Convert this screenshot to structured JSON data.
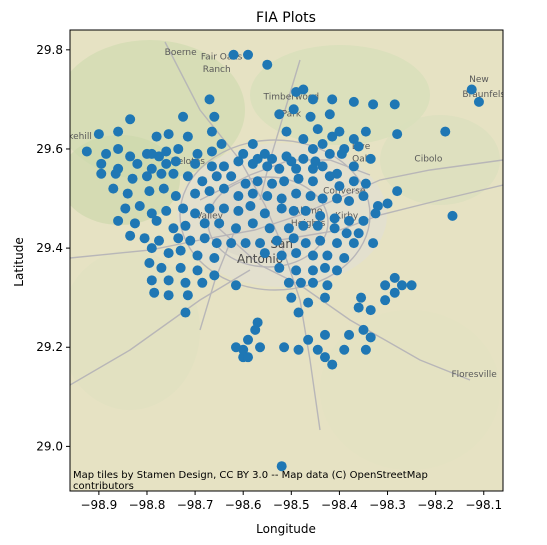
{
  "chart_data": {
    "type": "scatter",
    "title": "FIA Plots",
    "xlabel": "Longitude",
    "ylabel": "Latitude",
    "xlim": [
      -98.96,
      -98.06
    ],
    "ylim": [
      28.91,
      29.84
    ],
    "xticks": [
      -98.9,
      -98.8,
      -98.7,
      -98.6,
      -98.5,
      -98.4,
      -98.3,
      -98.2,
      -98.1
    ],
    "xtick_labels": [
      "−98.9",
      "−98.8",
      "−98.7",
      "−98.6",
      "−98.5",
      "−98.4",
      "−98.3",
      "−98.2",
      "−98.1"
    ],
    "yticks": [
      29.0,
      29.2,
      29.4,
      29.6,
      29.8
    ],
    "ytick_labels": [
      "29.0",
      "29.2",
      "29.4",
      "29.6",
      "29.8"
    ],
    "grid": false,
    "marker_color": "#1f77b4",
    "attribution": [
      "Map tiles by Stamen Design, CC BY 3.0 -- Map data (C) OpenStreetMap",
      "contributors"
    ],
    "basemap_labels": [
      {
        "text": "Boerne",
        "lon": -98.73,
        "lat": 29.79,
        "size": "small"
      },
      {
        "text": "Fair Oaks",
        "lon": -98.645,
        "lat": 29.78,
        "size": "small"
      },
      {
        "text": "Ranch",
        "lon": -98.655,
        "lat": 29.755,
        "size": "small"
      },
      {
        "text": "Timberwood",
        "lon": -98.5,
        "lat": 29.7,
        "size": "small"
      },
      {
        "text": "Park",
        "lon": -98.5,
        "lat": 29.665,
        "size": "small"
      },
      {
        "text": "Live",
        "lon": -98.355,
        "lat": 29.6,
        "size": "small"
      },
      {
        "text": "Oak",
        "lon": -98.355,
        "lat": 29.575,
        "size": "small"
      },
      {
        "text": "Cibolo",
        "lon": -98.215,
        "lat": 29.575,
        "size": "small"
      },
      {
        "text": "New",
        "lon": -98.11,
        "lat": 29.735,
        "size": "small"
      },
      {
        "text": "Braunfels",
        "lon": -98.1,
        "lat": 29.705,
        "size": "small"
      },
      {
        "text": "Lakehill",
        "lon": -98.95,
        "lat": 29.62,
        "size": "small"
      },
      {
        "text": "Helotes",
        "lon": -98.715,
        "lat": 29.57,
        "size": "small"
      },
      {
        "text": "Valley",
        "lon": -98.67,
        "lat": 29.46,
        "size": "small"
      },
      {
        "text": "Converse",
        "lon": -98.39,
        "lat": 29.51,
        "size": "small"
      },
      {
        "text": "Kirby",
        "lon": -98.385,
        "lat": 29.46,
        "size": "small"
      },
      {
        "text": "Alamo",
        "lon": -98.465,
        "lat": 29.47,
        "size": "small"
      },
      {
        "text": "Heights",
        "lon": -98.465,
        "lat": 29.445,
        "size": "small"
      },
      {
        "text": "San",
        "lon": -98.52,
        "lat": 29.4,
        "size": "big"
      },
      {
        "text": "Antonio",
        "lon": -98.565,
        "lat": 29.37,
        "size": "big"
      },
      {
        "text": "Floresville",
        "lon": -98.12,
        "lat": 29.14,
        "size": "small"
      }
    ],
    "points": [
      [
        -98.62,
        29.79
      ],
      [
        -98.59,
        29.79
      ],
      [
        -98.55,
        29.77
      ],
      [
        -98.49,
        29.715
      ],
      [
        -98.475,
        29.72
      ],
      [
        -98.455,
        29.7
      ],
      [
        -98.415,
        29.7
      ],
      [
        -98.37,
        29.695
      ],
      [
        -98.33,
        29.69
      ],
      [
        -98.285,
        29.69
      ],
      [
        -98.11,
        29.695
      ],
      [
        -98.125,
        29.72
      ],
      [
        -98.67,
        29.7
      ],
      [
        -98.725,
        29.665
      ],
      [
        -98.66,
        29.665
      ],
      [
        -98.525,
        29.67
      ],
      [
        -98.495,
        29.68
      ],
      [
        -98.46,
        29.665
      ],
      [
        -98.445,
        29.64
      ],
      [
        -98.42,
        29.67
      ],
      [
        -98.4,
        29.635
      ],
      [
        -98.37,
        29.62
      ],
      [
        -98.345,
        29.635
      ],
      [
        -98.28,
        29.63
      ],
      [
        -98.18,
        29.635
      ],
      [
        -98.835,
        29.66
      ],
      [
        -98.86,
        29.635
      ],
      [
        -98.9,
        29.63
      ],
      [
        -98.78,
        29.625
      ],
      [
        -98.755,
        29.63
      ],
      [
        -98.715,
        29.625
      ],
      [
        -98.665,
        29.635
      ],
      [
        -98.58,
        29.61
      ],
      [
        -98.555,
        29.59
      ],
      [
        -98.51,
        29.635
      ],
      [
        -98.475,
        29.62
      ],
      [
        -98.455,
        29.6
      ],
      [
        -98.435,
        29.61
      ],
      [
        -98.415,
        29.625
      ],
      [
        -98.39,
        29.6
      ],
      [
        -98.36,
        29.605
      ],
      [
        -98.925,
        29.595
      ],
      [
        -98.885,
        29.59
      ],
      [
        -98.86,
        29.6
      ],
      [
        -98.835,
        29.585
      ],
      [
        -98.8,
        29.59
      ],
      [
        -98.79,
        29.59
      ],
      [
        -98.775,
        29.585
      ],
      [
        -98.76,
        29.595
      ],
      [
        -98.735,
        29.6
      ],
      [
        -98.695,
        29.59
      ],
      [
        -98.665,
        29.595
      ],
      [
        -98.645,
        29.61
      ],
      [
        -98.6,
        29.59
      ],
      [
        -98.57,
        29.58
      ],
      [
        -98.54,
        29.58
      ],
      [
        -98.51,
        29.585
      ],
      [
        -98.5,
        29.575
      ],
      [
        -98.475,
        29.58
      ],
      [
        -98.45,
        29.575
      ],
      [
        -98.42,
        29.59
      ],
      [
        -98.395,
        29.59
      ],
      [
        -98.895,
        29.57
      ],
      [
        -98.86,
        29.56
      ],
      [
        -98.82,
        29.57
      ],
      [
        -98.79,
        29.56
      ],
      [
        -98.76,
        29.57
      ],
      [
        -98.74,
        29.575
      ],
      [
        -98.7,
        29.57
      ],
      [
        -98.665,
        29.565
      ],
      [
        -98.64,
        29.565
      ],
      [
        -98.61,
        29.575
      ],
      [
        -98.58,
        29.57
      ],
      [
        -98.55,
        29.565
      ],
      [
        -98.525,
        29.56
      ],
      [
        -98.49,
        29.56
      ],
      [
        -98.455,
        29.56
      ],
      [
        -98.435,
        29.565
      ],
      [
        -98.405,
        29.55
      ],
      [
        -98.37,
        29.565
      ],
      [
        -98.335,
        29.58
      ],
      [
        -98.895,
        29.55
      ],
      [
        -98.865,
        29.55
      ],
      [
        -98.83,
        29.54
      ],
      [
        -98.8,
        29.545
      ],
      [
        -98.77,
        29.55
      ],
      [
        -98.745,
        29.55
      ],
      [
        -98.715,
        29.545
      ],
      [
        -98.685,
        29.535
      ],
      [
        -98.655,
        29.545
      ],
      [
        -98.625,
        29.545
      ],
      [
        -98.595,
        29.53
      ],
      [
        -98.57,
        29.535
      ],
      [
        -98.54,
        29.53
      ],
      [
        -98.515,
        29.535
      ],
      [
        -98.485,
        29.54
      ],
      [
        -98.455,
        29.535
      ],
      [
        -98.42,
        29.545
      ],
      [
        -98.4,
        29.525
      ],
      [
        -98.37,
        29.535
      ],
      [
        -98.345,
        29.53
      ],
      [
        -98.87,
        29.52
      ],
      [
        -98.84,
        29.51
      ],
      [
        -98.795,
        29.515
      ],
      [
        -98.765,
        29.52
      ],
      [
        -98.74,
        29.505
      ],
      [
        -98.7,
        29.51
      ],
      [
        -98.67,
        29.515
      ],
      [
        -98.64,
        29.52
      ],
      [
        -98.61,
        29.505
      ],
      [
        -98.58,
        29.51
      ],
      [
        -98.55,
        29.505
      ],
      [
        -98.52,
        29.5
      ],
      [
        -98.49,
        29.51
      ],
      [
        -98.46,
        29.505
      ],
      [
        -98.435,
        29.5
      ],
      [
        -98.405,
        29.5
      ],
      [
        -98.38,
        29.495
      ],
      [
        -98.35,
        29.505
      ],
      [
        -98.32,
        29.485
      ],
      [
        -98.3,
        29.49
      ],
      [
        -98.28,
        29.515
      ],
      [
        -98.845,
        29.48
      ],
      [
        -98.815,
        29.485
      ],
      [
        -98.79,
        29.47
      ],
      [
        -98.76,
        29.475
      ],
      [
        -98.725,
        29.48
      ],
      [
        -98.7,
        29.47
      ],
      [
        -98.67,
        29.48
      ],
      [
        -98.64,
        29.48
      ],
      [
        -98.61,
        29.475
      ],
      [
        -98.585,
        29.485
      ],
      [
        -98.555,
        29.47
      ],
      [
        -98.52,
        29.48
      ],
      [
        -98.495,
        29.475
      ],
      [
        -98.47,
        29.475
      ],
      [
        -98.44,
        29.465
      ],
      [
        -98.41,
        29.46
      ],
      [
        -98.38,
        29.455
      ],
      [
        -98.35,
        29.455
      ],
      [
        -98.325,
        29.47
      ],
      [
        -98.165,
        29.465
      ],
      [
        -98.86,
        29.455
      ],
      [
        -98.825,
        29.45
      ],
      [
        -98.78,
        29.455
      ],
      [
        -98.745,
        29.44
      ],
      [
        -98.72,
        29.445
      ],
      [
        -98.68,
        29.45
      ],
      [
        -98.65,
        29.45
      ],
      [
        -98.615,
        29.44
      ],
      [
        -98.58,
        29.45
      ],
      [
        -98.545,
        29.44
      ],
      [
        -98.505,
        29.44
      ],
      [
        -98.475,
        29.445
      ],
      [
        -98.445,
        29.445
      ],
      [
        -98.41,
        29.44
      ],
      [
        -98.385,
        29.43
      ],
      [
        -98.36,
        29.43
      ],
      [
        -98.835,
        29.425
      ],
      [
        -98.805,
        29.42
      ],
      [
        -98.775,
        29.415
      ],
      [
        -98.735,
        29.42
      ],
      [
        -98.71,
        29.415
      ],
      [
        -98.68,
        29.42
      ],
      [
        -98.655,
        29.41
      ],
      [
        -98.625,
        29.41
      ],
      [
        -98.595,
        29.41
      ],
      [
        -98.565,
        29.41
      ],
      [
        -98.53,
        29.415
      ],
      [
        -98.495,
        29.42
      ],
      [
        -98.47,
        29.41
      ],
      [
        -98.44,
        29.415
      ],
      [
        -98.405,
        29.41
      ],
      [
        -98.37,
        29.41
      ],
      [
        -98.33,
        29.41
      ],
      [
        -98.79,
        29.4
      ],
      [
        -98.755,
        29.39
      ],
      [
        -98.73,
        29.395
      ],
      [
        -98.695,
        29.385
      ],
      [
        -98.66,
        29.38
      ],
      [
        -98.555,
        29.39
      ],
      [
        -98.52,
        29.385
      ],
      [
        -98.49,
        29.39
      ],
      [
        -98.455,
        29.385
      ],
      [
        -98.425,
        29.385
      ],
      [
        -98.39,
        29.38
      ],
      [
        -98.795,
        29.37
      ],
      [
        -98.77,
        29.36
      ],
      [
        -98.73,
        29.36
      ],
      [
        -98.695,
        29.355
      ],
      [
        -98.66,
        29.345
      ],
      [
        -98.525,
        29.36
      ],
      [
        -98.49,
        29.355
      ],
      [
        -98.455,
        29.355
      ],
      [
        -98.43,
        29.36
      ],
      [
        -98.405,
        29.355
      ],
      [
        -98.79,
        29.335
      ],
      [
        -98.755,
        29.335
      ],
      [
        -98.72,
        29.33
      ],
      [
        -98.685,
        29.33
      ],
      [
        -98.615,
        29.325
      ],
      [
        -98.505,
        29.33
      ],
      [
        -98.48,
        29.33
      ],
      [
        -98.455,
        29.33
      ],
      [
        -98.425,
        29.325
      ],
      [
        -98.285,
        29.34
      ],
      [
        -98.285,
        29.31
      ],
      [
        -98.27,
        29.325
      ],
      [
        -98.25,
        29.325
      ],
      [
        -98.305,
        29.325
      ],
      [
        -98.785,
        29.31
      ],
      [
        -98.755,
        29.305
      ],
      [
        -98.715,
        29.305
      ],
      [
        -98.5,
        29.3
      ],
      [
        -98.465,
        29.29
      ],
      [
        -98.43,
        29.3
      ],
      [
        -98.355,
        29.3
      ],
      [
        -98.305,
        29.295
      ],
      [
        -98.335,
        29.275
      ],
      [
        -98.36,
        29.28
      ],
      [
        -98.72,
        29.27
      ],
      [
        -98.485,
        29.27
      ],
      [
        -98.57,
        29.25
      ],
      [
        -98.575,
        29.235
      ],
      [
        -98.59,
        29.215
      ],
      [
        -98.465,
        29.215
      ],
      [
        -98.43,
        29.225
      ],
      [
        -98.38,
        29.225
      ],
      [
        -98.35,
        29.235
      ],
      [
        -98.335,
        29.22
      ],
      [
        -98.615,
        29.2
      ],
      [
        -98.6,
        29.195
      ],
      [
        -98.565,
        29.2
      ],
      [
        -98.515,
        29.2
      ],
      [
        -98.485,
        29.195
      ],
      [
        -98.445,
        29.195
      ],
      [
        -98.43,
        29.18
      ],
      [
        -98.39,
        29.195
      ],
      [
        -98.345,
        29.195
      ],
      [
        -98.6,
        29.18
      ],
      [
        -98.59,
        29.18
      ],
      [
        -98.415,
        29.165
      ],
      [
        -98.52,
        28.96
      ]
    ]
  }
}
